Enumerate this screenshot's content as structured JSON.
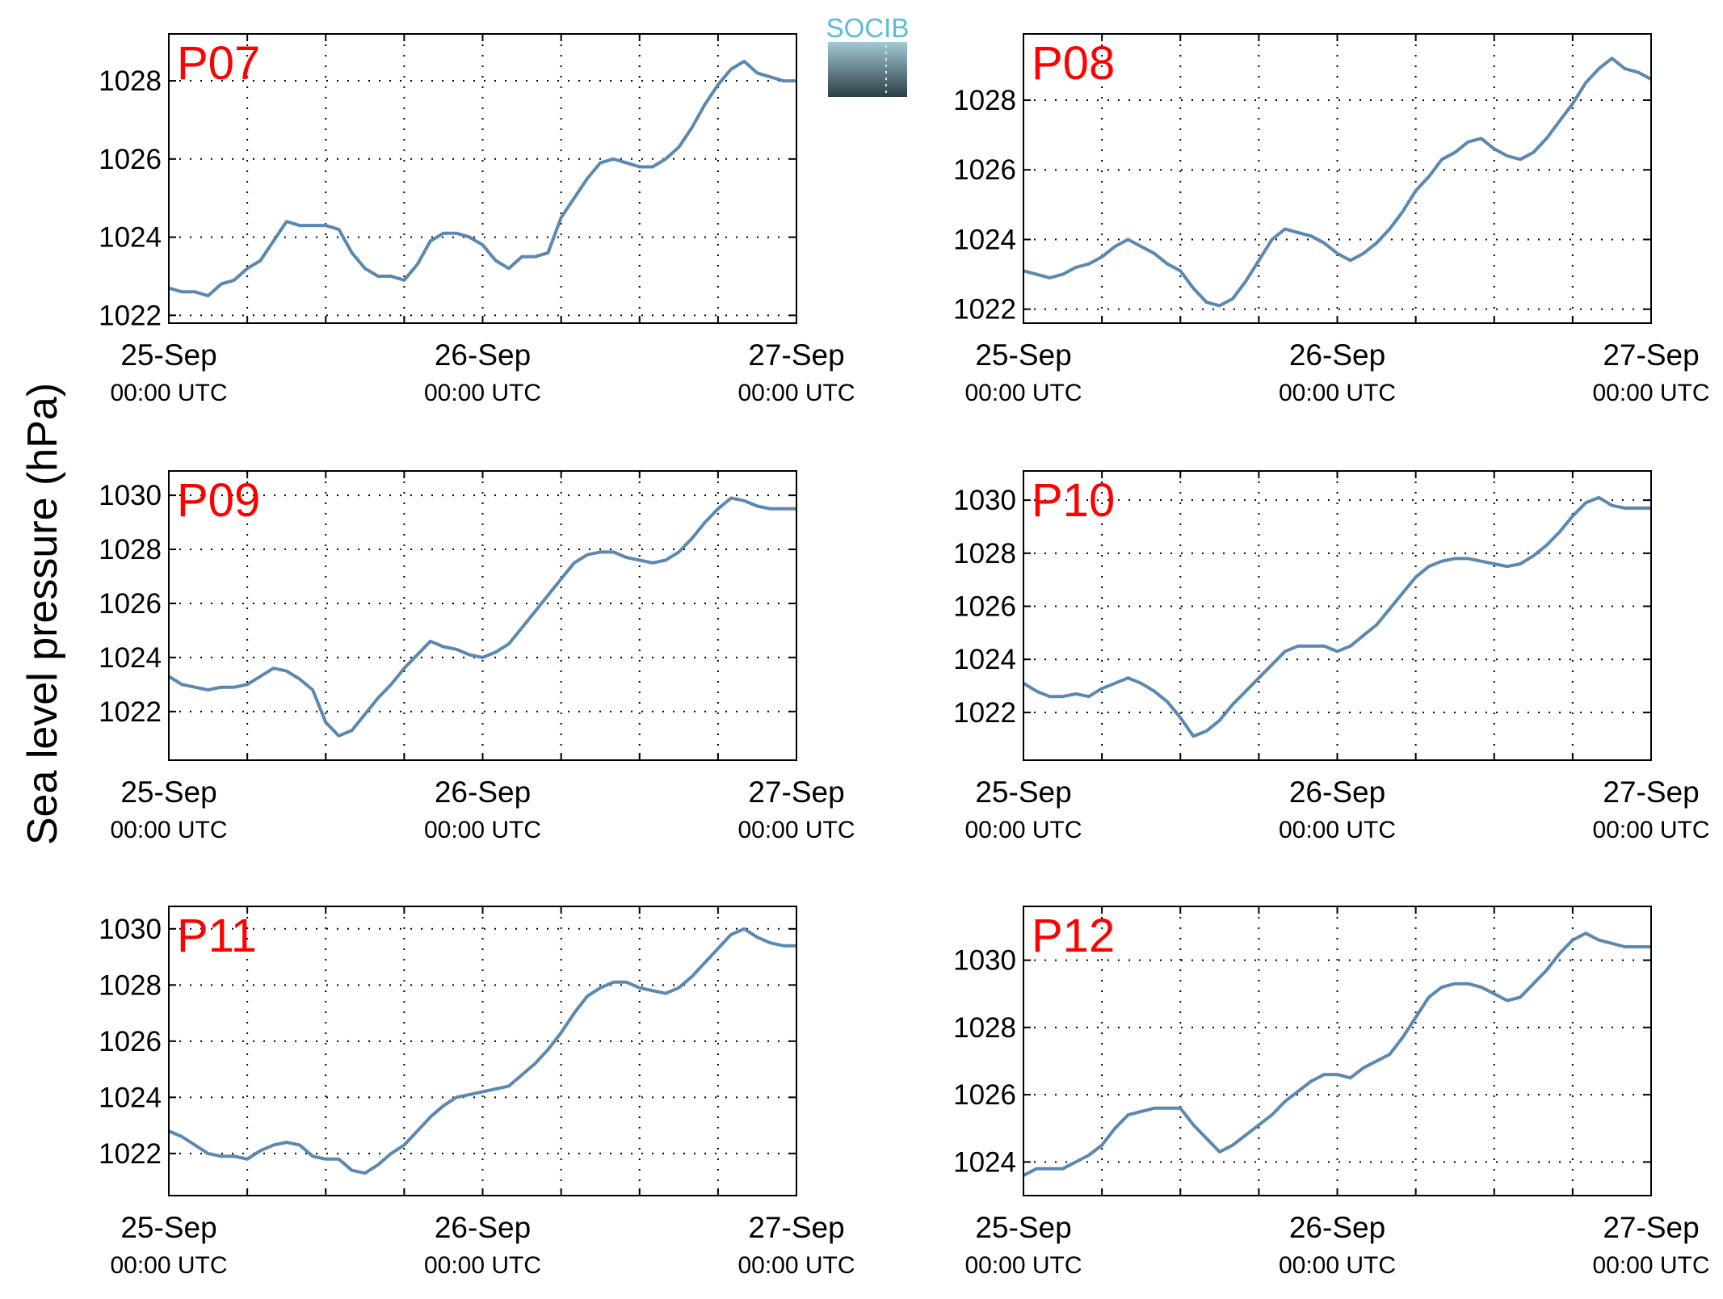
{
  "figure": {
    "ylabel": "Sea level pressure (hPa)",
    "logo_text": "SOCIB",
    "line_color": "#5b88b0",
    "label_color": "#ff0000",
    "x_tick_labels": [
      {
        "date": "25-Sep",
        "time": "00:00 UTC"
      },
      {
        "date": "26-Sep",
        "time": "00:00 UTC"
      },
      {
        "date": "27-Sep",
        "time": "00:00 UTC"
      }
    ]
  },
  "chart_data": [
    {
      "type": "line",
      "station": "P07",
      "x_unit": "hours since 25-Sep 00:00 UTC",
      "xlim": [
        0,
        48
      ],
      "ylim": [
        1021.8,
        1029.2
      ],
      "yticks": [
        1022,
        1024,
        1026,
        1028
      ],
      "grid": true,
      "x": [
        0,
        1,
        2,
        3,
        4,
        5,
        6,
        7,
        8,
        9,
        10,
        11,
        12,
        13,
        14,
        15,
        16,
        17,
        18,
        19,
        20,
        21,
        22,
        23,
        24,
        25,
        26,
        27,
        28,
        29,
        30,
        31,
        32,
        33,
        34,
        35,
        36,
        37,
        38,
        39,
        40,
        41,
        42,
        43,
        44,
        45,
        46,
        47,
        48
      ],
      "y": [
        1022.7,
        1022.6,
        1022.6,
        1022.5,
        1022.8,
        1022.9,
        1023.2,
        1023.4,
        1023.9,
        1024.4,
        1024.3,
        1024.3,
        1024.3,
        1024.2,
        1023.6,
        1023.2,
        1023.0,
        1023.0,
        1022.9,
        1023.3,
        1023.9,
        1024.1,
        1024.1,
        1024.0,
        1023.8,
        1023.4,
        1023.2,
        1023.5,
        1023.5,
        1023.6,
        1024.5,
        1025.0,
        1025.5,
        1025.9,
        1026.0,
        1025.9,
        1025.8,
        1025.8,
        1026.0,
        1026.3,
        1026.8,
        1027.4,
        1027.9,
        1028.3,
        1028.5,
        1028.2,
        1028.1,
        1028.0,
        1028.0
      ]
    },
    {
      "type": "line",
      "station": "P08",
      "x_unit": "hours since 25-Sep 00:00 UTC",
      "xlim": [
        0,
        48
      ],
      "ylim": [
        1021.6,
        1029.9
      ],
      "yticks": [
        1022,
        1024,
        1026,
        1028
      ],
      "grid": true,
      "x": [
        0,
        1,
        2,
        3,
        4,
        5,
        6,
        7,
        8,
        9,
        10,
        11,
        12,
        13,
        14,
        15,
        16,
        17,
        18,
        19,
        20,
        21,
        22,
        23,
        24,
        25,
        26,
        27,
        28,
        29,
        30,
        31,
        32,
        33,
        34,
        35,
        36,
        37,
        38,
        39,
        40,
        41,
        42,
        43,
        44,
        45,
        46,
        47,
        48
      ],
      "y": [
        1023.1,
        1023.0,
        1022.9,
        1023.0,
        1023.2,
        1023.3,
        1023.5,
        1023.8,
        1024.0,
        1023.8,
        1023.6,
        1023.3,
        1023.1,
        1022.6,
        1022.2,
        1022.1,
        1022.3,
        1022.8,
        1023.4,
        1024.0,
        1024.3,
        1024.2,
        1024.1,
        1023.9,
        1023.6,
        1023.4,
        1023.6,
        1023.9,
        1024.3,
        1024.8,
        1025.4,
        1025.8,
        1026.3,
        1026.5,
        1026.8,
        1026.9,
        1026.6,
        1026.4,
        1026.3,
        1026.5,
        1026.9,
        1027.4,
        1027.9,
        1028.5,
        1028.9,
        1029.2,
        1028.9,
        1028.8,
        1028.6
      ]
    },
    {
      "type": "line",
      "station": "P09",
      "x_unit": "hours since 25-Sep 00:00 UTC",
      "xlim": [
        0,
        48
      ],
      "ylim": [
        1020.2,
        1030.9
      ],
      "yticks": [
        1022,
        1024,
        1026,
        1028,
        1030
      ],
      "grid": true,
      "x": [
        0,
        1,
        2,
        3,
        4,
        5,
        6,
        7,
        8,
        9,
        10,
        11,
        12,
        13,
        14,
        15,
        16,
        17,
        18,
        19,
        20,
        21,
        22,
        23,
        24,
        25,
        26,
        27,
        28,
        29,
        30,
        31,
        32,
        33,
        34,
        35,
        36,
        37,
        38,
        39,
        40,
        41,
        42,
        43,
        44,
        45,
        46,
        47,
        48
      ],
      "y": [
        1023.3,
        1023.0,
        1022.9,
        1022.8,
        1022.9,
        1022.9,
        1023.0,
        1023.3,
        1023.6,
        1023.5,
        1023.2,
        1022.8,
        1021.6,
        1021.1,
        1021.3,
        1021.9,
        1022.5,
        1023.0,
        1023.6,
        1024.1,
        1024.6,
        1024.4,
        1024.3,
        1024.1,
        1024.0,
        1024.2,
        1024.5,
        1025.1,
        1025.7,
        1026.3,
        1026.9,
        1027.5,
        1027.8,
        1027.9,
        1027.9,
        1027.7,
        1027.6,
        1027.5,
        1027.6,
        1027.9,
        1028.4,
        1029.0,
        1029.5,
        1029.9,
        1029.8,
        1029.6,
        1029.5,
        1029.5,
        1029.5
      ]
    },
    {
      "type": "line",
      "station": "P10",
      "x_unit": "hours since 25-Sep 00:00 UTC",
      "xlim": [
        0,
        48
      ],
      "ylim": [
        1020.2,
        1031.1
      ],
      "yticks": [
        1022,
        1024,
        1026,
        1028,
        1030
      ],
      "grid": true,
      "x": [
        0,
        1,
        2,
        3,
        4,
        5,
        6,
        7,
        8,
        9,
        10,
        11,
        12,
        13,
        14,
        15,
        16,
        17,
        18,
        19,
        20,
        21,
        22,
        23,
        24,
        25,
        26,
        27,
        28,
        29,
        30,
        31,
        32,
        33,
        34,
        35,
        36,
        37,
        38,
        39,
        40,
        41,
        42,
        43,
        44,
        45,
        46,
        47,
        48
      ],
      "y": [
        1023.1,
        1022.8,
        1022.6,
        1022.6,
        1022.7,
        1022.6,
        1022.9,
        1023.1,
        1023.3,
        1023.1,
        1022.8,
        1022.4,
        1021.8,
        1021.1,
        1021.3,
        1021.7,
        1022.3,
        1022.8,
        1023.3,
        1023.8,
        1024.3,
        1024.5,
        1024.5,
        1024.5,
        1024.3,
        1024.5,
        1024.9,
        1025.3,
        1025.9,
        1026.5,
        1027.1,
        1027.5,
        1027.7,
        1027.8,
        1027.8,
        1027.7,
        1027.6,
        1027.5,
        1027.6,
        1027.9,
        1028.3,
        1028.8,
        1029.4,
        1029.9,
        1030.1,
        1029.8,
        1029.7,
        1029.7,
        1029.7
      ]
    },
    {
      "type": "line",
      "station": "P11",
      "x_unit": "hours since 25-Sep 00:00 UTC",
      "xlim": [
        0,
        48
      ],
      "ylim": [
        1020.5,
        1030.8
      ],
      "yticks": [
        1022,
        1024,
        1026,
        1028,
        1030
      ],
      "grid": true,
      "x": [
        0,
        1,
        2,
        3,
        4,
        5,
        6,
        7,
        8,
        9,
        10,
        11,
        12,
        13,
        14,
        15,
        16,
        17,
        18,
        19,
        20,
        21,
        22,
        23,
        24,
        25,
        26,
        27,
        28,
        29,
        30,
        31,
        32,
        33,
        34,
        35,
        36,
        37,
        38,
        39,
        40,
        41,
        42,
        43,
        44,
        45,
        46,
        47,
        48
      ],
      "y": [
        1022.8,
        1022.6,
        1022.3,
        1022.0,
        1021.9,
        1021.9,
        1021.8,
        1022.1,
        1022.3,
        1022.4,
        1022.3,
        1021.9,
        1021.8,
        1021.8,
        1021.4,
        1021.3,
        1021.6,
        1022.0,
        1022.3,
        1022.8,
        1023.3,
        1023.7,
        1024.0,
        1024.1,
        1024.2,
        1024.3,
        1024.4,
        1024.8,
        1025.2,
        1025.7,
        1026.3,
        1027.0,
        1027.6,
        1027.9,
        1028.1,
        1028.1,
        1027.9,
        1027.8,
        1027.7,
        1027.9,
        1028.3,
        1028.8,
        1029.3,
        1029.8,
        1030.0,
        1029.7,
        1029.5,
        1029.4,
        1029.4
      ]
    },
    {
      "type": "line",
      "station": "P12",
      "x_unit": "hours since 25-Sep 00:00 UTC",
      "xlim": [
        0,
        48
      ],
      "ylim": [
        1023.0,
        1031.6
      ],
      "yticks": [
        1024,
        1026,
        1028,
        1030
      ],
      "grid": true,
      "x": [
        0,
        1,
        2,
        3,
        4,
        5,
        6,
        7,
        8,
        9,
        10,
        11,
        12,
        13,
        14,
        15,
        16,
        17,
        18,
        19,
        20,
        21,
        22,
        23,
        24,
        25,
        26,
        27,
        28,
        29,
        30,
        31,
        32,
        33,
        34,
        35,
        36,
        37,
        38,
        39,
        40,
        41,
        42,
        43,
        44,
        45,
        46,
        47,
        48
      ],
      "y": [
        1023.6,
        1023.8,
        1023.8,
        1023.8,
        1024.0,
        1024.2,
        1024.5,
        1025.0,
        1025.4,
        1025.5,
        1025.6,
        1025.6,
        1025.6,
        1025.1,
        1024.7,
        1024.3,
        1024.5,
        1024.8,
        1025.1,
        1025.4,
        1025.8,
        1026.1,
        1026.4,
        1026.6,
        1026.6,
        1026.5,
        1026.8,
        1027.0,
        1027.2,
        1027.7,
        1028.3,
        1028.9,
        1029.2,
        1029.3,
        1029.3,
        1029.2,
        1029.0,
        1028.8,
        1028.9,
        1029.3,
        1029.7,
        1030.2,
        1030.6,
        1030.8,
        1030.6,
        1030.5,
        1030.4,
        1030.4,
        1030.4
      ]
    }
  ]
}
